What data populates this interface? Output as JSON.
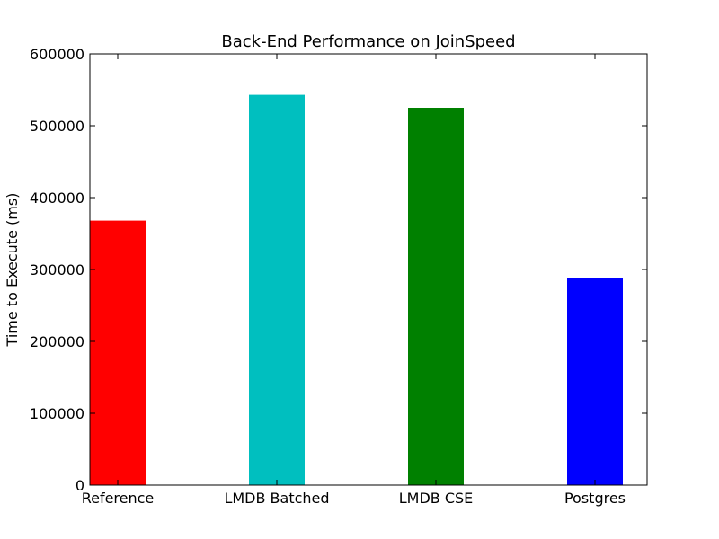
{
  "chart_data": {
    "type": "bar",
    "title": "Back-End Performance on  JoinSpeed",
    "xlabel": "",
    "ylabel": "Time to Execute (ms)",
    "categories": [
      "Reference",
      "LMDB Batched",
      "LMDB CSE",
      "Postgres"
    ],
    "values": [
      368000,
      543000,
      525000,
      288000
    ],
    "colors": [
      "#ff0000",
      "#00bfbf",
      "#008000",
      "#0000ff"
    ],
    "ylim": [
      0,
      600000
    ],
    "yticks": [
      0,
      100000,
      200000,
      300000,
      400000,
      500000,
      600000
    ],
    "ytick_labels": [
      "0",
      "100000",
      "200000",
      "300000",
      "400000",
      "500000",
      "600000"
    ],
    "grid": false,
    "legend": "none"
  }
}
